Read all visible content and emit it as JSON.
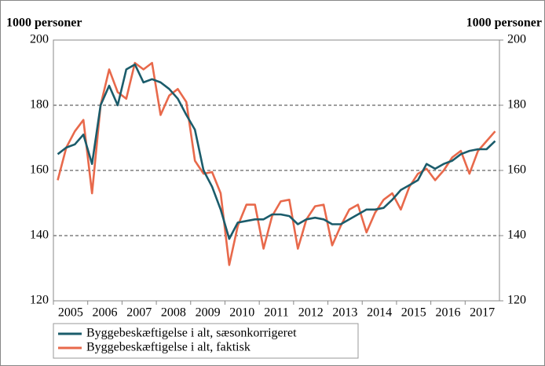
{
  "chart_data": {
    "type": "line",
    "y_label": "1000 personer",
    "y2_label": "1000 personer",
    "categories": [
      "2005",
      null,
      null,
      null,
      "2006",
      null,
      null,
      null,
      "2007",
      null,
      null,
      null,
      "2008",
      null,
      null,
      null,
      "2009",
      null,
      null,
      null,
      "2010",
      null,
      null,
      null,
      "2011",
      null,
      null,
      null,
      "2012",
      null,
      null,
      null,
      "2013",
      null,
      null,
      null,
      "2014",
      null,
      null,
      null,
      "2015",
      null,
      null,
      null,
      "2016",
      null,
      null,
      null,
      "2017",
      null,
      null,
      null
    ],
    "series": [
      {
        "name": "Byggebeskæftigelse i alt, sæsonkorrigeret",
        "color": "#1b5c6b",
        "values": [
          165,
          167,
          168,
          171,
          162,
          180,
          186,
          180,
          191,
          192.5,
          187,
          188,
          187,
          185,
          182,
          177,
          172.5,
          160,
          155,
          148,
          139,
          144,
          144.5,
          145,
          145,
          146.5,
          146.5,
          146,
          143.5,
          145,
          145.5,
          145,
          143.5,
          143.5,
          145,
          146.5,
          148,
          148,
          148.5,
          151,
          154,
          155.5,
          157,
          162,
          160.5,
          162,
          163,
          165,
          166,
          166.5,
          166.5,
          169
        ]
      },
      {
        "name": "Byggebeskæftigelse i alt, faktisk",
        "color": "#e8694b",
        "values": [
          157,
          167,
          172,
          175.5,
          153,
          180,
          191,
          184,
          182,
          193,
          191,
          193,
          177,
          183,
          185,
          181,
          163,
          159,
          159.5,
          153,
          131,
          143,
          149.5,
          149.5,
          136,
          146,
          150.5,
          151,
          136,
          145,
          149,
          149.5,
          137,
          143,
          148,
          149.5,
          141,
          147,
          151,
          153,
          148,
          155,
          159,
          160.5,
          157,
          160,
          164,
          166,
          159,
          166,
          169,
          172
        ]
      }
    ],
    "ylim": [
      120,
      200
    ],
    "yticks": [
      120,
      140,
      160,
      180,
      200
    ],
    "y2lim": [
      120,
      200
    ],
    "y2ticks": [
      120,
      140,
      160,
      180,
      200
    ],
    "grid": true
  }
}
